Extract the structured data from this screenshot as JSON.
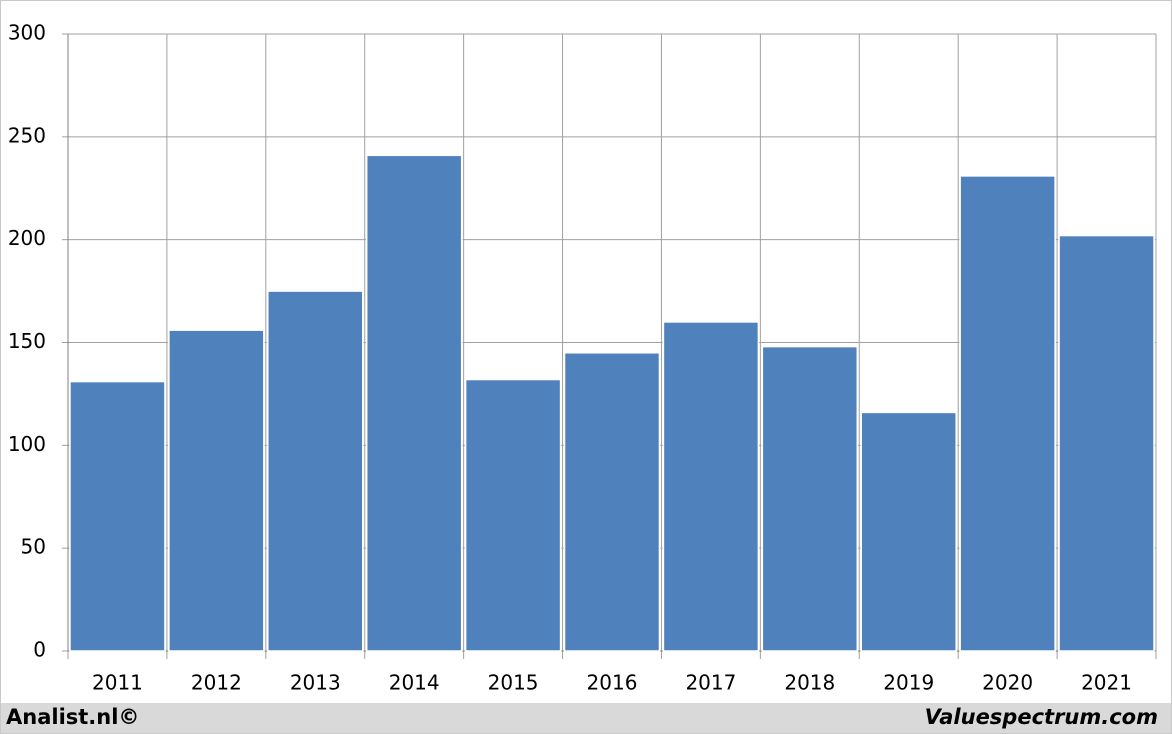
{
  "chart_data": {
    "type": "bar",
    "categories": [
      "2011",
      "2012",
      "2013",
      "2014",
      "2015",
      "2016",
      "2017",
      "2018",
      "2019",
      "2020",
      "2021"
    ],
    "values": [
      131,
      156,
      175,
      241,
      132,
      145,
      160,
      148,
      116,
      231,
      202
    ],
    "color": "#4f81bd",
    "ylim": [
      0,
      300
    ],
    "yticks": [
      0,
      50,
      100,
      150,
      200,
      250,
      300
    ],
    "grid": true
  },
  "footer": {
    "left": "Analist.nl©",
    "right": "Valuespectrum.com"
  }
}
